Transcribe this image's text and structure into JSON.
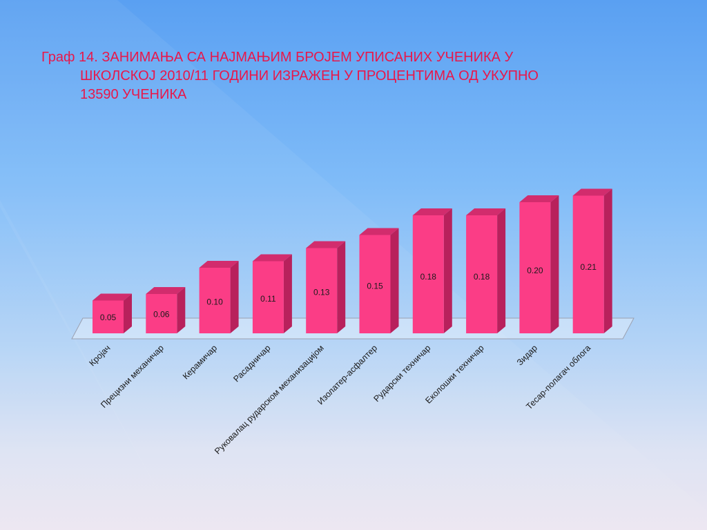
{
  "slide": {
    "title_lines": [
      "Граф 14. ЗАНИМАЊА СА НАЈМАЊИМ  БРОЈЕМ УПИСАНИХ  УЧЕНИКА  У",
      "ШКОЛСКОЈ  2010/11  ГОДИНИ  ИЗРАЖЕН  У  ПРОЦЕНТИМА ОД УКУПНО",
      "13590  УЧЕНИКА"
    ]
  },
  "colors": {
    "bar_front": "#fb3d86",
    "bar_side": "#b8215c",
    "bar_top": "#d22c6d",
    "title": "#e8174a"
  },
  "chart_data": {
    "type": "bar",
    "title": "Граф 14. ЗАНИМАЊА СА НАЈМАЊИМ  БРОЈЕМ УПИСАНИХ  УЧЕНИКА  У ШКОЛСКОЈ  2010/11  ГОДИНИ  ИЗРАЖЕН  У  ПРОЦЕНТИМА ОД УКУПНО 13590  УЧЕНИКА",
    "categories": [
      "Кројач",
      "Прецизни механичар",
      "Керамичар",
      "Расадничар",
      "Руковалац рударском механизацијом",
      "Изолатер-асфалтер",
      "Рударски техничар",
      "Еколошки техничар",
      "Зидар",
      "Тесар-полагач облога"
    ],
    "values": [
      0.05,
      0.06,
      0.1,
      0.11,
      0.13,
      0.15,
      0.18,
      0.18,
      0.2,
      0.21
    ],
    "data_labels": [
      "0.05",
      "0.06",
      "0.10",
      "0.11",
      "0.13",
      "0.15",
      "0.18",
      "0.18",
      "0.20",
      "0.21"
    ],
    "ylim": [
      0,
      0.22
    ],
    "grid": false,
    "legend": "none",
    "style": "3d-column"
  }
}
